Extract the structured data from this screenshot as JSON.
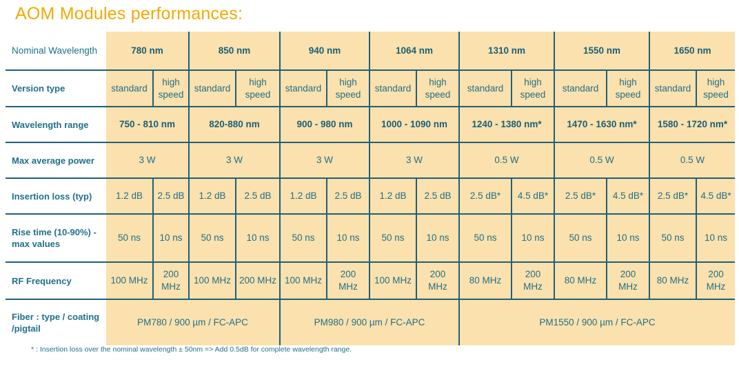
{
  "title": "AOM Modules performances:",
  "table": {
    "nominal": {
      "label": "Nominal Wavelength",
      "values": [
        "780 nm",
        "850 nm",
        "940 nm",
        "1064 nm",
        "1310 nm",
        "1550 nm",
        "1650 nm"
      ]
    },
    "version": {
      "label": "Version type",
      "standard": "standard",
      "high": "high speed"
    },
    "wlrange": {
      "label": "Wavelength range",
      "values": [
        "750 - 810 nm",
        "820-880 nm",
        "900 - 980 nm",
        "1000 - 1090 nm",
        "1240 - 1380 nm*",
        "1470 - 1630 nm*",
        "1580 - 1720 nm*"
      ]
    },
    "power": {
      "label": "Max average power",
      "values": [
        "3 W",
        "3 W",
        "3 W",
        "3 W",
        "0.5 W",
        "0.5 W",
        "0.5 W"
      ]
    },
    "insertion": {
      "label": "Insertion loss (typ)",
      "values": [
        "1.2 dB",
        "2.5 dB",
        "1.2 dB",
        "2.5 dB",
        "1.2 dB",
        "2.5 dB",
        "1.2 dB",
        "2.5 dB",
        "2.5 dB*",
        "4.5 dB*",
        "2.5 dB*",
        "4.5 dB*",
        "2.5 dB*",
        "4.5 dB*"
      ]
    },
    "rise": {
      "label": "Rise time (10-90%) - max values",
      "values": [
        "50 ns",
        "10 ns",
        "50 ns",
        "10 ns",
        "50 ns",
        "10 ns",
        "50 ns",
        "10 ns",
        "50 ns",
        "10 ns",
        "50 ns",
        "10 ns",
        "50 ns",
        "10 ns"
      ]
    },
    "rf": {
      "label": "RF Frequency",
      "values": [
        "100 MHz",
        "200 MHz",
        "100 MHz",
        "200 MHz",
        "100 MHz",
        "200 MHz",
        "100 MHz",
        "200 MHz",
        "80 MHz",
        "200 MHz",
        "80 MHz",
        "200 MHz",
        "80 MHz",
        "200 MHz"
      ]
    },
    "fiber": {
      "label": "Fiber : type / coating /pigtail",
      "values": [
        "PM780 / 900 µm / FC-APC",
        "PM980 / 900 µm / FC-APC",
        "PM1550 / 900 µm / FC-APC"
      ]
    }
  },
  "footnote": "* : Insertion loss over the nominal wavelength ± 50nm => Add 0.5dB for complete wavelength range.",
  "colors": {
    "title": "#f2a900",
    "cell_fill": "#fbe1ad",
    "text": "#1f6f8b",
    "grid": "#1f5f78"
  }
}
